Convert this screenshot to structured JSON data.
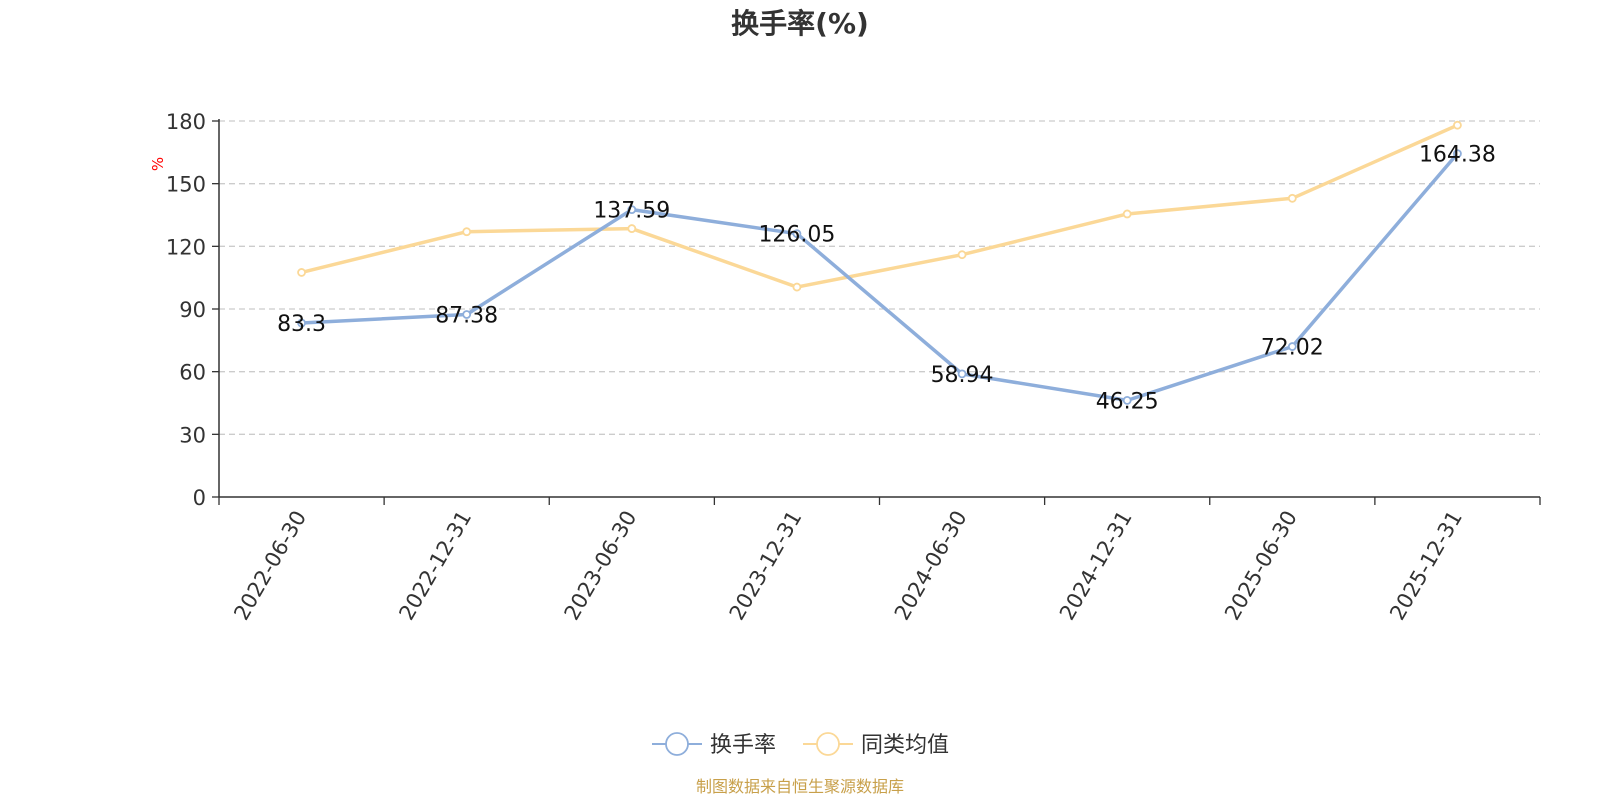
{
  "chart_data": {
    "type": "line",
    "title": "换手率(%)",
    "ylabel": "%",
    "ylim": [
      0,
      180
    ],
    "yticks": [
      0,
      30,
      60,
      90,
      120,
      150,
      180
    ],
    "categories": [
      "2022-06-30",
      "2022-12-31",
      "2023-06-30",
      "2023-12-31",
      "2024-06-30",
      "2024-12-31",
      "2025-06-30",
      "2025-12-31"
    ],
    "series": [
      {
        "name": "换手率",
        "color": "#8eaedb",
        "values": [
          83.3,
          87.38,
          137.59,
          126.05,
          58.94,
          46.25,
          72.02,
          164.38
        ],
        "labels": [
          "83.3",
          "87.38",
          "137.59",
          "126.05",
          "58.94",
          "46.25",
          "72.02",
          "164.38"
        ]
      },
      {
        "name": "同类均值",
        "color": "#fbd897",
        "values": [
          107.5,
          127,
          128.5,
          100.5,
          116,
          135.5,
          143,
          178
        ]
      }
    ],
    "grid": true,
    "legend": "bottom-center",
    "source": "制图数据来自恒生聚源数据库"
  }
}
